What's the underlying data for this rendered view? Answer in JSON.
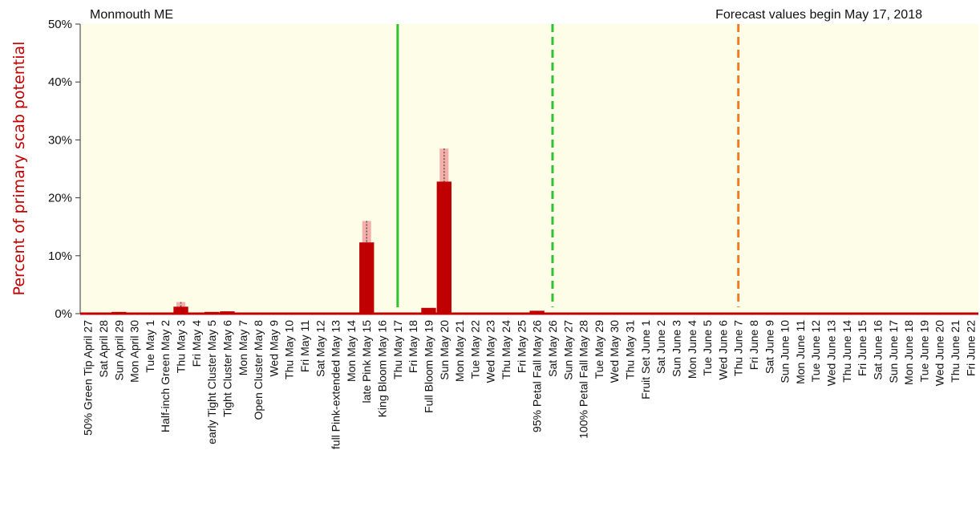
{
  "chart_data": {
    "type": "bar",
    "location": "Monmouth ME",
    "forecast_note": "Forecast values begin May 17, 2018",
    "ylabel": "Percent of primary scab potential",
    "xlabel": "",
    "ylim": [
      0,
      50
    ],
    "y_ticks": [
      "0%",
      "10%",
      "20%",
      "30%",
      "40%",
      "50%"
    ],
    "y_tick_values": [
      0,
      10,
      20,
      30,
      40,
      50
    ],
    "grid": false,
    "categories": [
      "50% Green Tip  April 27",
      "Sat  April 28",
      "Sun  April 29",
      "Mon  April 30",
      "Tue  May 1",
      "Half-inch Green  May 2",
      "Thu  May 3",
      "Fri  May 4",
      "early Tight Cluster  May 5",
      "Tight Cluster  May 6",
      "Mon  May 7",
      "Open Cluster  May 8",
      "Wed  May 9",
      "Thu  May 10",
      "Fri  May 11",
      "Sat  May 12",
      "full Pink-extended  May 13",
      "Mon  May 14",
      "late Pink  May 15",
      "King Bloom  May 16",
      "Thu  May 17",
      "Fri  May 18",
      "Full Bloom  May 19",
      "Sun  May 20",
      "Mon  May 21",
      "Tue  May 22",
      "Wed  May 23",
      "Thu  May 24",
      "Fri  May 25",
      "95% Petal Fall  May 26",
      "Sat  May 26",
      "Sun  May 27",
      "100% Petal Fall  May 28",
      "Tue  May 29",
      "Wed  May 30",
      "Thu  May 31",
      "Fruit Set  June 1",
      "Sat  June 2",
      "Sun  June 3",
      "Mon  June 4",
      "Tue  June 5",
      "Wed  June 6",
      "Thu  June 7",
      "Fri  June 8",
      "Sat  June 9",
      "Sun  June 10",
      "Mon  June 11",
      "Tue  June 12",
      "Wed  June 13",
      "Thu  June 14",
      "Fri  June 15",
      "Sat  June 16",
      "Sun  June 17",
      "Mon  June 18",
      "Tue  June 19",
      "Wed  June 20",
      "Thu  June 21",
      "Fri  June 22"
    ],
    "values": [
      0,
      0,
      0.3,
      0,
      0,
      0,
      1.2,
      0,
      0.3,
      0.4,
      0,
      0,
      0,
      0,
      0,
      0,
      0,
      0,
      12.3,
      0,
      0,
      0,
      1,
      22.8,
      0,
      0,
      0,
      0,
      0,
      0.5,
      0,
      0,
      0,
      0,
      0,
      0,
      0,
      0,
      0,
      0,
      0,
      0,
      0,
      0,
      0,
      0,
      0,
      0,
      0,
      0,
      0,
      0,
      0,
      0,
      0,
      0,
      0,
      0
    ],
    "range_high": [
      0,
      0,
      0,
      0,
      0,
      0,
      2,
      0,
      0,
      0,
      0,
      0,
      0,
      0,
      0,
      0,
      0,
      0,
      16,
      0,
      0,
      0,
      0,
      28.5,
      0,
      0,
      0,
      0,
      0,
      0,
      0,
      0,
      0,
      0,
      0,
      0,
      0,
      0,
      0,
      0,
      0,
      0,
      0,
      0,
      0,
      0,
      0,
      0,
      0,
      0,
      0,
      0,
      0,
      0,
      0,
      0,
      0,
      0
    ],
    "range_low": [
      0,
      0,
      0,
      0,
      0,
      0,
      0,
      0,
      0,
      0,
      0,
      0,
      0,
      0,
      0,
      0,
      0,
      0,
      8.5,
      0,
      0,
      0,
      0,
      18,
      0,
      0,
      0,
      0,
      0,
      0,
      0,
      0,
      0,
      0,
      0,
      0,
      0,
      0,
      0,
      0,
      0,
      0,
      0,
      0,
      0,
      0,
      0,
      0,
      0,
      0,
      0,
      0,
      0,
      0,
      0,
      0,
      0,
      0
    ],
    "marker_lines": [
      {
        "at": "Thu  May 17",
        "color": "#2fc42f",
        "style": "solid"
      },
      {
        "at": "Sat  May 26",
        "color": "#2fc42f",
        "style": "dashed"
      },
      {
        "at": "Thu  June 7",
        "color": "#f07a2a",
        "style": "dashed"
      }
    ],
    "colors": {
      "bar": "#c00000",
      "range": "#f4a0a0",
      "background": "#fdfde8",
      "ylabel": "#c00000"
    }
  }
}
